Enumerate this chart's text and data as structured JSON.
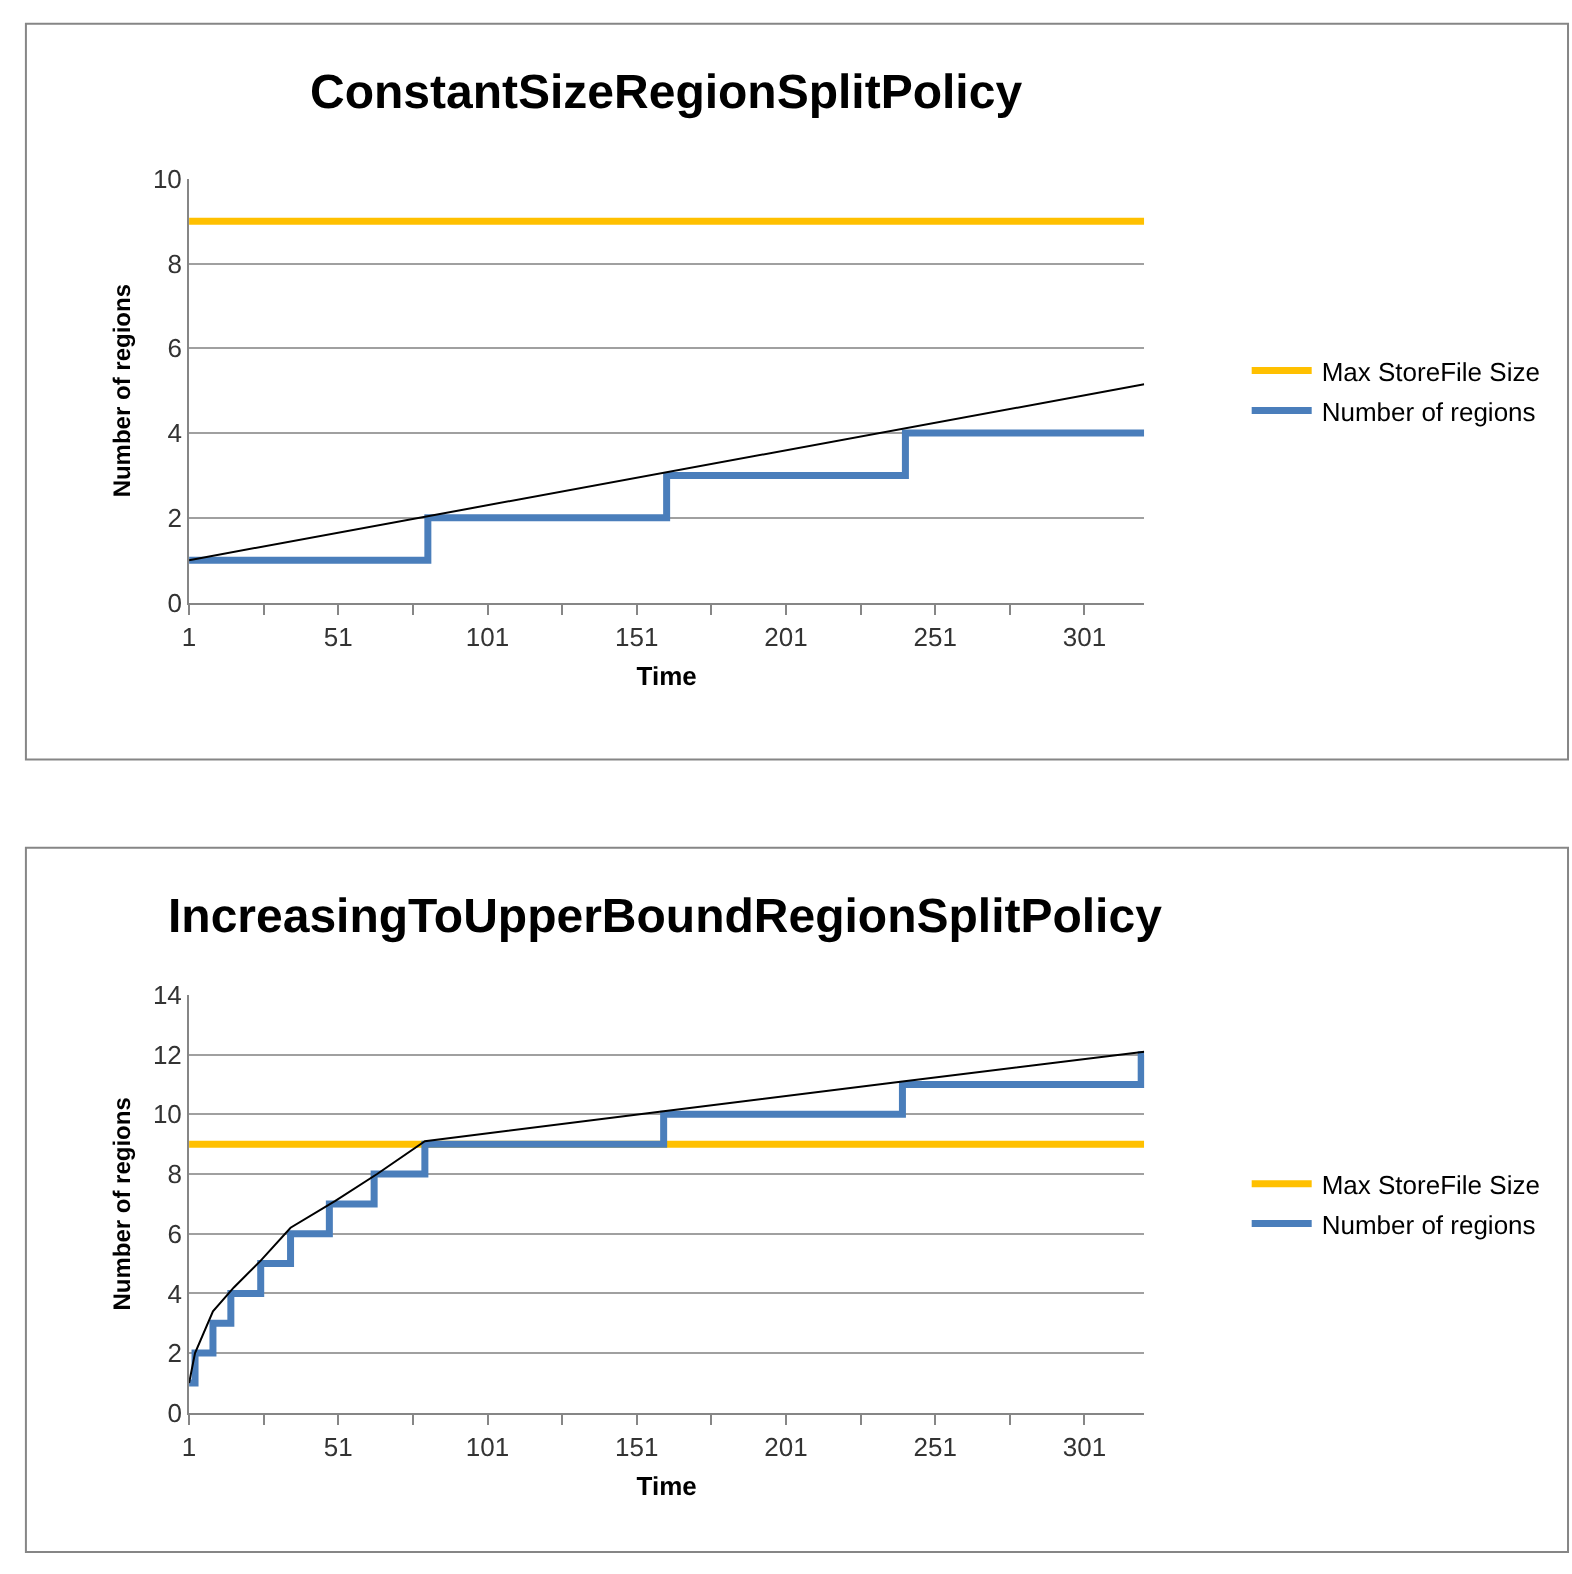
{
  "chart_data": [
    {
      "type": "line",
      "title": "ConstantSizeRegionSplitPolicy",
      "xlabel": "Time",
      "ylabel": "Number of regions",
      "xlim": [
        1,
        321
      ],
      "xticks": [
        1,
        {
          "value": 26,
          "label": null
        },
        51,
        {
          "value": 76,
          "label": null
        },
        101,
        {
          "value": 126,
          "label": null
        },
        151,
        {
          "value": 176,
          "label": null
        },
        201,
        {
          "value": 226,
          "label": null
        },
        251,
        {
          "value": 276,
          "label": null
        },
        301
      ],
      "ylim": [
        0,
        10
      ],
      "yticks": [
        0,
        2,
        4,
        6,
        8,
        10
      ],
      "grid": "y",
      "legend": "right",
      "series": [
        {
          "name": "Max StoreFile Size",
          "color": "#ffc000",
          "x": [
            1,
            321
          ],
          "values": [
            9,
            9
          ]
        },
        {
          "name": "Number of regions",
          "type": "step",
          "color": "#4a7ebb",
          "x": [
            1,
            81,
            161,
            241,
            321
          ],
          "values": [
            1,
            2,
            3,
            4,
            4
          ]
        },
        {
          "color": "#000000",
          "x": [
            1,
            321
          ],
          "values": [
            1,
            5.15
          ]
        }
      ]
    },
    {
      "type": "line",
      "title": "IncreasingToUpperBoundRegionSplitPolicy",
      "xlabel": "Time",
      "ylabel": "Number of regions",
      "xlim": [
        1,
        321
      ],
      "xticks": [
        1,
        {
          "value": 26,
          "label": null
        },
        51,
        {
          "value": 76,
          "label": null
        },
        101,
        {
          "value": 126,
          "label": null
        },
        151,
        {
          "value": 176,
          "label": null
        },
        201,
        {
          "value": 226,
          "label": null
        },
        251,
        {
          "value": 276,
          "label": null
        },
        301
      ],
      "ylim": [
        0,
        14
      ],
      "yticks": [
        0,
        2,
        4,
        6,
        8,
        10,
        12,
        14
      ],
      "grid": "y",
      "legend": "right",
      "series": [
        {
          "name": "Max StoreFile Size",
          "color": "#ffc000",
          "x": [
            1,
            321
          ],
          "values": [
            9,
            9
          ]
        },
        {
          "name": "Number of regions",
          "type": "step",
          "color": "#4a7ebb",
          "x": [
            1,
            3,
            9,
            15,
            25,
            35,
            48,
            63,
            80,
            160,
            240,
            320,
            321
          ],
          "values": [
            1,
            2,
            3,
            4,
            5,
            6,
            7,
            8,
            9,
            10,
            11,
            12,
            12
          ]
        },
        {
          "color": "#000000",
          "x": [
            1,
            3,
            9,
            16,
            25,
            35,
            50,
            64,
            80,
            160,
            240,
            321
          ],
          "values": [
            1,
            2,
            3.4,
            4.2,
            5.1,
            6.2,
            7.1,
            8.0,
            9.1,
            10.1,
            11.1,
            12.1
          ]
        }
      ]
    }
  ]
}
